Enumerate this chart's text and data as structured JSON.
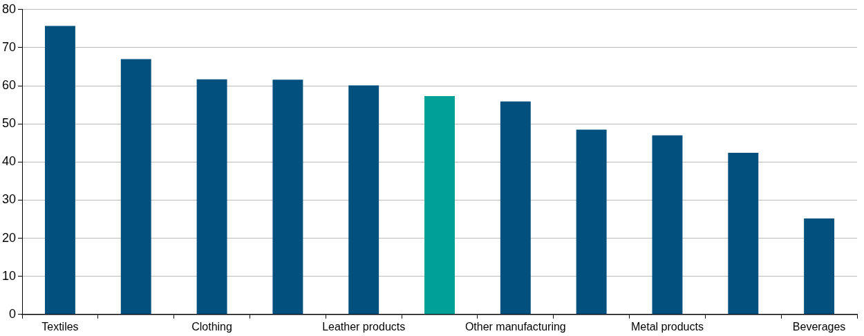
{
  "chart_data": {
    "type": "bar",
    "categories": [
      "Textiles",
      null,
      "Clothing",
      null,
      "Leather products",
      null,
      "Other manufacturing",
      null,
      "Metal products",
      null,
      "Beverages"
    ],
    "values": [
      75.7,
      67.0,
      61.7,
      61.6,
      60.1,
      57.3,
      55.9,
      48.5,
      47.0,
      42.4,
      25.2
    ],
    "colors": [
      "#01507e",
      "#01507e",
      "#01507e",
      "#01507e",
      "#01507e",
      "#00a096",
      "#01507e",
      "#01507e",
      "#01507e",
      "#01507e",
      "#01507e"
    ],
    "ylim": [
      0,
      80
    ],
    "yticks": [
      0,
      10,
      20,
      30,
      40,
      50,
      60,
      70,
      80
    ],
    "grid": "y",
    "legend": false
  }
}
